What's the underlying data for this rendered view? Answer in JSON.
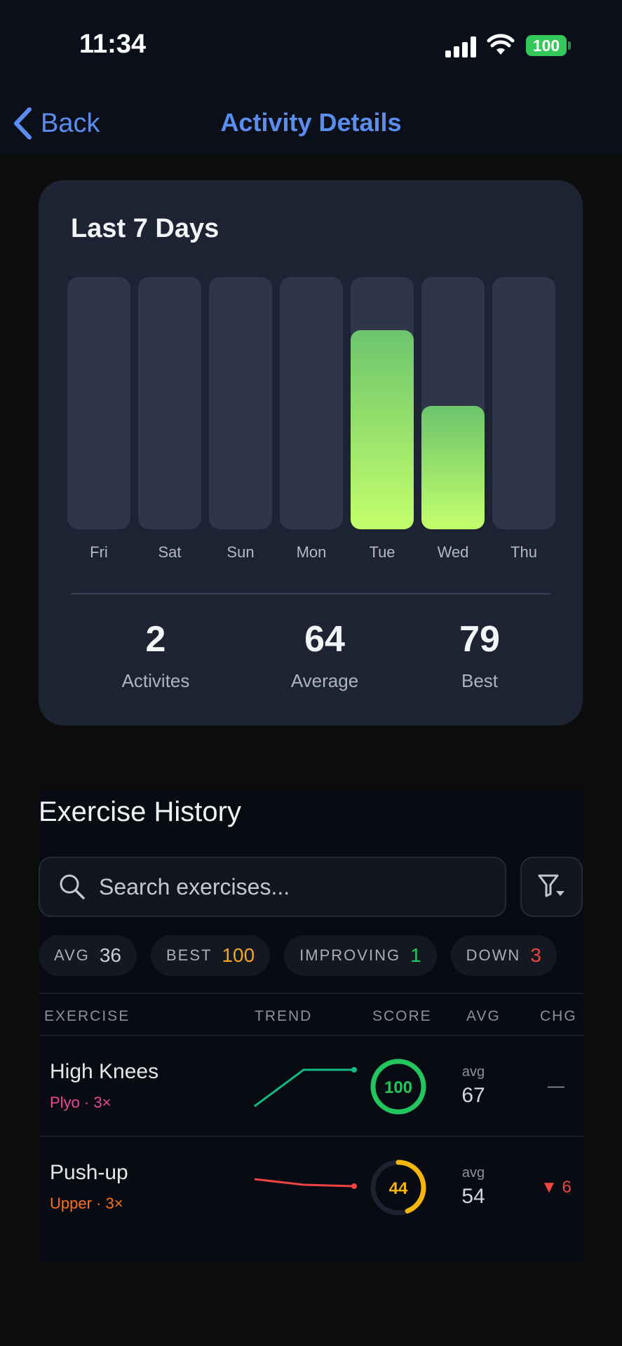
{
  "status_bar": {
    "time": "11:34",
    "battery": "100"
  },
  "nav": {
    "back_label": "Back",
    "title": "Activity Details"
  },
  "summary_card": {
    "title": "Last 7 Days",
    "stats": [
      {
        "value": "2",
        "label": "Activites"
      },
      {
        "value": "64",
        "label": "Average"
      },
      {
        "value": "79",
        "label": "Best"
      }
    ]
  },
  "chart_data": {
    "type": "bar",
    "title": "Last 7 Days",
    "categories": [
      "Fri",
      "Sat",
      "Sun",
      "Mon",
      "Tue",
      "Wed",
      "Thu"
    ],
    "values": [
      0,
      0,
      0,
      0,
      79,
      49,
      0
    ],
    "ylim": [
      0,
      100
    ],
    "colors": {
      "track": "#30364a",
      "fill_top": "#6cc46c",
      "fill_bottom": "#c3ff6c"
    }
  },
  "history": {
    "title": "Exercise History",
    "search_placeholder": "Search exercises...",
    "chips": [
      {
        "label": "AVG",
        "value": "36",
        "color": "#c9ccd5"
      },
      {
        "label": "BEST",
        "value": "100",
        "color": "#f5a524"
      },
      {
        "label": "IMPROVING",
        "value": "1",
        "color": "#22c55e"
      },
      {
        "label": "DOWN",
        "value": "3",
        "color": "#ef4444"
      }
    ],
    "columns": [
      "EXERCISE",
      "TREND",
      "SCORE",
      "AVG",
      "CHG"
    ],
    "rows": [
      {
        "name": "High Knees",
        "category": "Plyo · 3×",
        "category_color": "#ec4899",
        "score": "100",
        "score_fraction": 1.0,
        "score_color": "#22c55e",
        "trend_color": "#10b981",
        "avg_label": "avg",
        "avg": "67",
        "change": "—",
        "change_color": "#8b909c"
      },
      {
        "name": "Push-up",
        "category": "Upper · 3×",
        "category_color": "#f97316",
        "score": "44",
        "score_fraction": 0.44,
        "score_color": "#f5b50a",
        "trend_color": "#ef4444",
        "avg_label": "avg",
        "avg": "54",
        "change": "▼ 6",
        "change_color": "#ef4444"
      }
    ]
  }
}
